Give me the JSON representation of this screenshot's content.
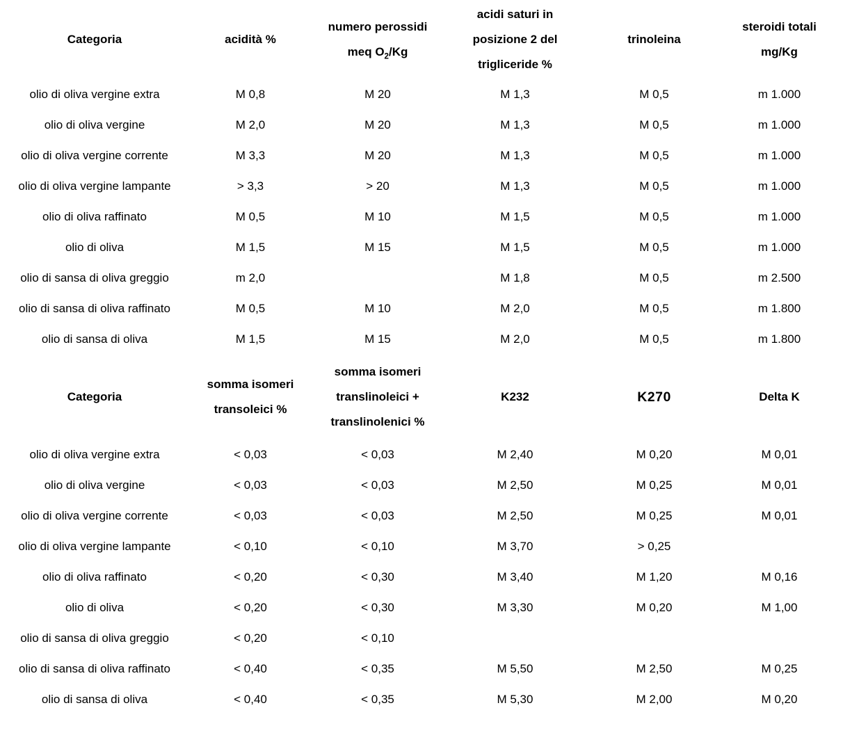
{
  "document": {
    "background": "#ffffff",
    "text_color": "#000000",
    "language": "it"
  },
  "tables": [
    {
      "id": "chemical-quality-limits",
      "headers": [
        {
          "lines": [
            [
              {
                "t": "Categoria"
              }
            ]
          ]
        },
        {
          "lines": [
            [
              {
                "t": "acidità %"
              }
            ]
          ]
        },
        {
          "lines": [
            [
              {
                "t": "numero perossidi"
              }
            ],
            [
              {
                "t": "meq O"
              },
              {
                "t": "2",
                "sub": true
              },
              {
                "t": "/Kg"
              }
            ]
          ]
        },
        {
          "lines": [
            [
              {
                "t": "acidi saturi in"
              }
            ],
            [
              {
                "t": "posizione 2 del"
              }
            ],
            [
              {
                "t": "trigliceride %"
              }
            ]
          ]
        },
        {
          "lines": [
            [
              {
                "t": "trinoleina"
              }
            ]
          ]
        },
        {
          "lines": [
            [
              {
                "t": "steroidi totali"
              }
            ],
            [
              {
                "t": "mg/Kg"
              }
            ]
          ]
        }
      ],
      "rows": [
        {
          "category": "olio di oliva vergine extra",
          "values": [
            "M 0,8",
            "M 20",
            "M 1,3",
            "M 0,5",
            "m 1.000"
          ]
        },
        {
          "category": "olio di oliva vergine",
          "values": [
            "M 2,0",
            "M 20",
            "M 1,3",
            "M 0,5",
            "m 1.000"
          ]
        },
        {
          "category": "olio di oliva vergine corrente",
          "values": [
            "M 3,3",
            "M 20",
            "M 1,3",
            "M 0,5",
            "m 1.000"
          ]
        },
        {
          "category": "olio di oliva vergine lampante",
          "values": [
            "> 3,3",
            "> 20",
            "M 1,3",
            "M 0,5",
            "m 1.000"
          ]
        },
        {
          "category": "olio di oliva raffinato",
          "values": [
            "M 0,5",
            "M 10",
            "M 1,5",
            "M 0,5",
            "m 1.000"
          ]
        },
        {
          "category": "olio di oliva",
          "values": [
            "M 1,5",
            "M 15",
            "M 1,5",
            "M 0,5",
            "m 1.000"
          ]
        },
        {
          "category": "olio di sansa di oliva greggio",
          "values": [
            "m 2,0",
            "",
            "M 1,8",
            "M 0,5",
            "m 2.500"
          ]
        },
        {
          "category": "olio di sansa di oliva raffinato",
          "values": [
            "M 0,5",
            "M 10",
            "M 2,0",
            "M 0,5",
            "m 1.800"
          ]
        },
        {
          "category": "olio di sansa di oliva",
          "values": [
            "M 1,5",
            "M 15",
            "M 2,0",
            "M 0,5",
            "m 1.800"
          ]
        }
      ]
    },
    {
      "id": "isomers-and-k-values-limits",
      "headers": [
        {
          "lines": [
            [
              {
                "t": "Categoria"
              }
            ]
          ]
        },
        {
          "lines": [
            [
              {
                "t": "somma isomeri"
              }
            ],
            [
              {
                "t": "transoleici %"
              }
            ]
          ]
        },
        {
          "lines": [
            [
              {
                "t": "somma isomeri"
              }
            ],
            [
              {
                "t": "translinoleici +"
              }
            ],
            [
              {
                "t": "translinolenici %"
              }
            ]
          ]
        },
        {
          "lines": [
            [
              {
                "t": "K232"
              }
            ]
          ]
        },
        {
          "lines": [
            [
              {
                "t": "K270",
                "big": true
              }
            ]
          ]
        },
        {
          "lines": [
            [
              {
                "t": "Delta K"
              }
            ]
          ]
        }
      ],
      "rows": [
        {
          "category": "olio di oliva vergine extra",
          "values": [
            "< 0,03",
            "< 0,03",
            "M 2,40",
            "M 0,20",
            "M 0,01"
          ]
        },
        {
          "category": "olio di oliva vergine",
          "values": [
            "< 0,03",
            "< 0,03",
            "M 2,50",
            "M 0,25",
            "M 0,01"
          ]
        },
        {
          "category": "olio di oliva vergine corrente",
          "values": [
            "< 0,03",
            "< 0,03",
            "M 2,50",
            "M 0,25",
            "M 0,01"
          ]
        },
        {
          "category": "olio di oliva vergine lampante",
          "values": [
            "< 0,10",
            "< 0,10",
            "M 3,70",
            "> 0,25",
            ""
          ]
        },
        {
          "category": "olio di oliva raffinato",
          "values": [
            "< 0,20",
            "< 0,30",
            "M 3,40",
            "M 1,20",
            "M 0,16"
          ]
        },
        {
          "category": "olio di oliva",
          "values": [
            "< 0,20",
            "< 0,30",
            "M 3,30",
            "M 0,20",
            "M 1,00"
          ]
        },
        {
          "category": "olio di sansa di oliva greggio",
          "values": [
            "< 0,20",
            "< 0,10",
            "",
            "",
            ""
          ]
        },
        {
          "category": "olio di sansa di oliva raffinato",
          "values": [
            "< 0,40",
            "< 0,35",
            "M 5,50",
            "M 2,50",
            "M 0,25"
          ]
        },
        {
          "category": "olio di sansa di oliva",
          "values": [
            "< 0,40",
            "< 0,35",
            "M 5,30",
            "M 2,00",
            "M 0,20"
          ]
        }
      ]
    }
  ]
}
